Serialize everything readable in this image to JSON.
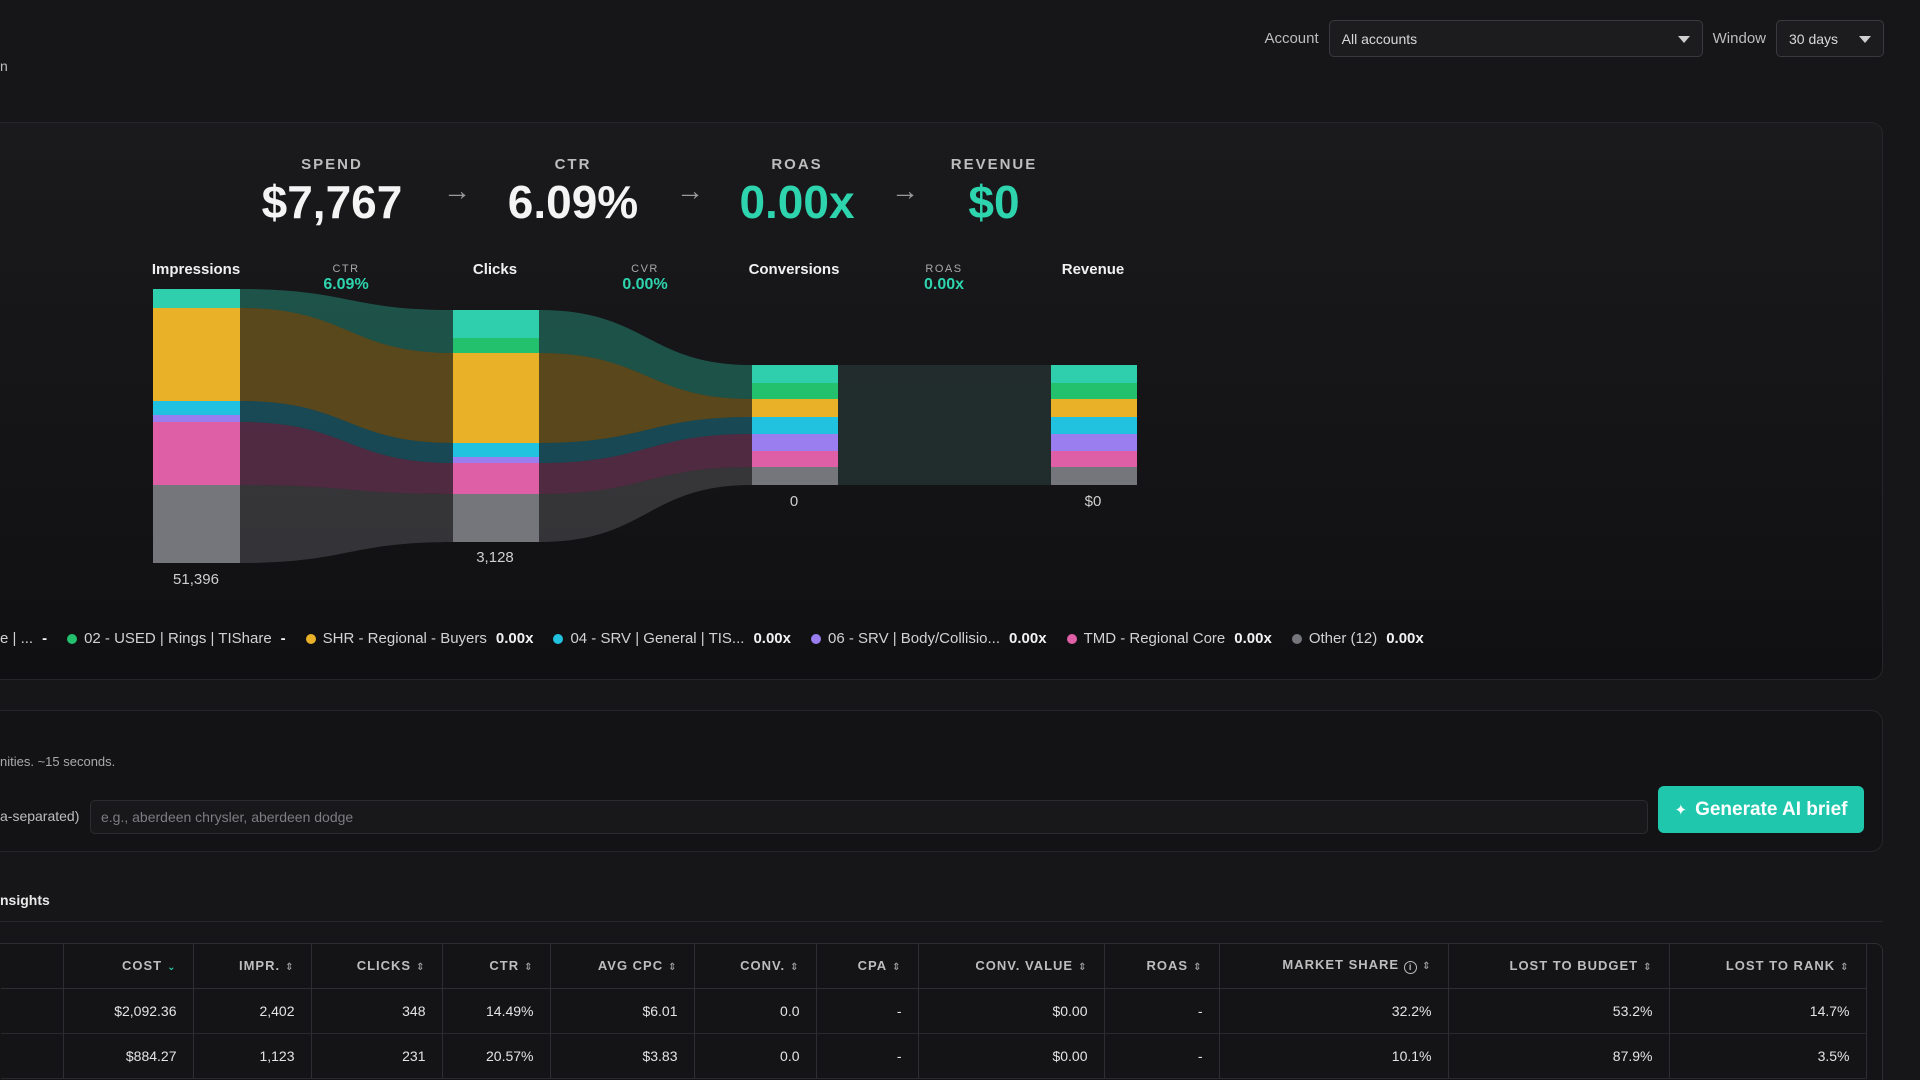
{
  "header": {
    "clipped_text": "n"
  },
  "controls": {
    "account_label": "Account",
    "account_value": "All accounts",
    "window_label": "Window",
    "window_value": "30 days"
  },
  "metrics": [
    {
      "label": "SPEND",
      "value": "$7,767"
    },
    {
      "label": "CTR",
      "value": "6.09%"
    },
    {
      "label": "ROAS",
      "value": "0.00x"
    },
    {
      "label": "REVENUE",
      "value": "$0"
    }
  ],
  "funnel": {
    "stages": [
      {
        "label": "Impressions",
        "value": "51,396"
      },
      {
        "label": "Clicks",
        "value": "3,128"
      },
      {
        "label": "Conversions",
        "value": "0"
      },
      {
        "label": "Revenue",
        "value": "$0"
      }
    ],
    "rates": [
      {
        "label": "CTR",
        "value": "6.09%"
      },
      {
        "label": "CVR",
        "value": "0.00%"
      },
      {
        "label": "ROAS",
        "value": "0.00x"
      }
    ]
  },
  "chart_data": {
    "type": "sankey",
    "stages": [
      "Impressions",
      "Clicks",
      "Conversions",
      "Revenue"
    ],
    "totals": [
      51396,
      3128,
      0,
      0
    ]
  },
  "segment_colors": {
    "teal": "#2fcfae",
    "green": "#23c06d",
    "amber": "#e8b127",
    "cyan": "#21c2e0",
    "violet": "#9a7ef0",
    "pink": "#df5fa6",
    "gray": "#75767b"
  },
  "legend": [
    {
      "name": "e | ...",
      "value": "-",
      "color": "#2fcfae"
    },
    {
      "name": "02 - USED | Rings | TIShare",
      "value": "-",
      "color": "#23c06d"
    },
    {
      "name": "SHR - Regional - Buyers",
      "value": "0.00x",
      "color": "#e8b127"
    },
    {
      "name": "04 - SRV | General | TIS...",
      "value": "0.00x",
      "color": "#21c2e0"
    },
    {
      "name": "06 - SRV | Body/Collisio...",
      "value": "0.00x",
      "color": "#9a7ef0"
    },
    {
      "name": "TMD - Regional Core",
      "value": "0.00x",
      "color": "#df5fa6"
    },
    {
      "name": "Other (12)",
      "value": "0.00x",
      "color": "#75767b"
    }
  ],
  "brief": {
    "note": "nities. ~15 seconds.",
    "field_label": "a-separated)",
    "placeholder": "e.g., aberdeen chrysler, aberdeen dodge",
    "button_label": "Generate AI brief"
  },
  "insights": {
    "title": "nsights",
    "columns": [
      "COST",
      "IMPR.",
      "CLICKS",
      "CTR",
      "AVG CPC",
      "CONV.",
      "CPA",
      "CONV. VALUE",
      "ROAS",
      "MARKET SHARE",
      "LOST TO BUDGET",
      "LOST TO RANK"
    ],
    "rows": [
      [
        "$2,092.36",
        "2,402",
        "348",
        "14.49%",
        "$6.01",
        "0.0",
        "-",
        "$0.00",
        "-",
        "32.2%",
        "53.2%",
        "14.7%"
      ],
      [
        "$884.27",
        "1,123",
        "231",
        "20.57%",
        "$3.83",
        "0.0",
        "-",
        "$0.00",
        "-",
        "10.1%",
        "87.9%",
        "3.5%"
      ]
    ]
  }
}
